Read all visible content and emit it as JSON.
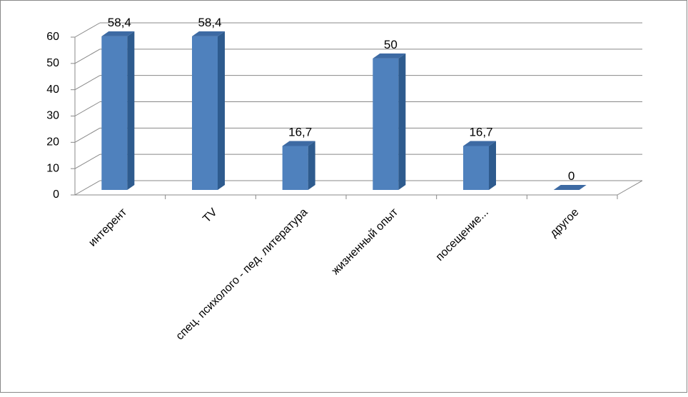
{
  "chart_data": {
    "type": "bar3d",
    "categories": [
      "интерент",
      "TV",
      "спец. психолого - пед. литература",
      "жизненный опыт",
      "посещение...",
      "другое"
    ],
    "values": [
      58.4,
      58.4,
      16.7,
      50,
      16.7,
      0
    ],
    "value_labels": [
      "58,4",
      "58,4",
      "16,7",
      "50",
      "16,7",
      "0"
    ],
    "color": "#4f81bd",
    "ylim": [
      0,
      60
    ],
    "yticks": [
      0,
      10,
      20,
      30,
      40,
      50,
      60
    ],
    "grid": true
  }
}
